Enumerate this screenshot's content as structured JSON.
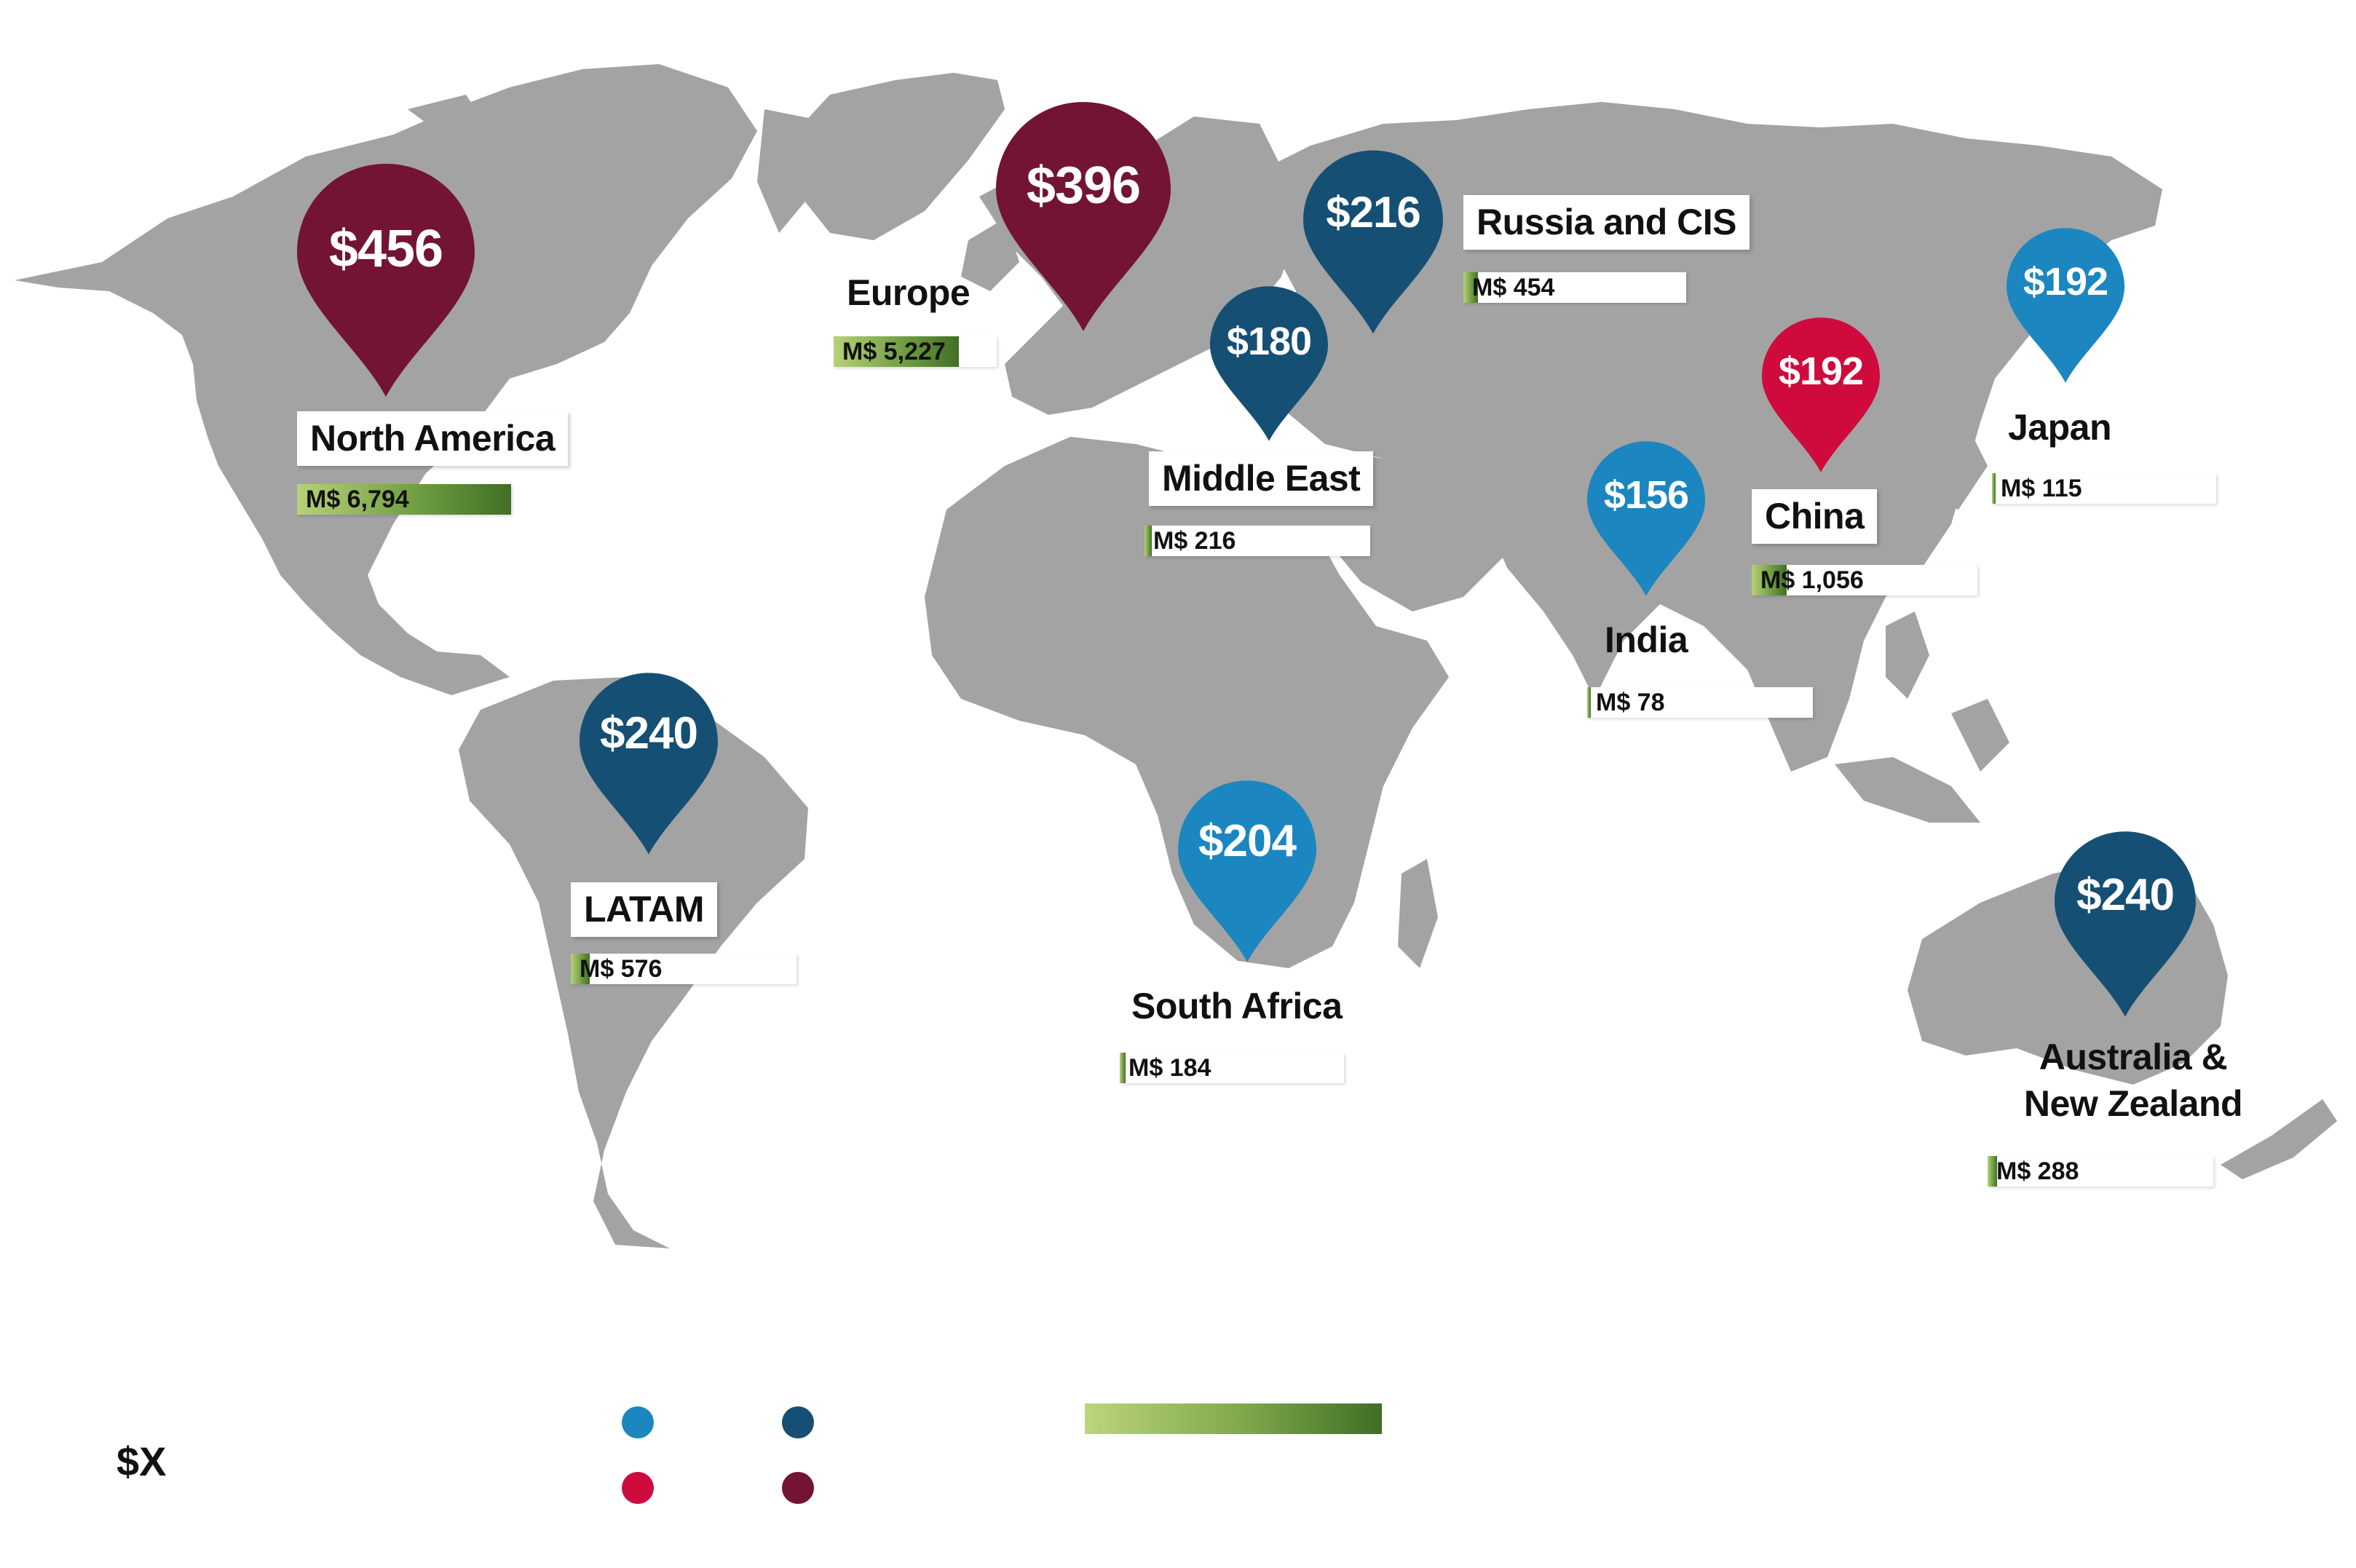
{
  "colors": {
    "land": "#a3a3a3",
    "light_blue": "#1b86bf",
    "dark_blue": "#154f74",
    "red": "#cf0b3e",
    "maroon": "#721432",
    "bar_light": "#b7d178",
    "bar_dark": "#416f25"
  },
  "regions": {
    "north_america": {
      "name": "North America",
      "price": "$456",
      "market": "M$ 6,794",
      "market_value": 6794,
      "pin_color": "maroon"
    },
    "europe": {
      "name": "Europe",
      "price": "$396",
      "market": "M$ 5,227",
      "market_value": 5227,
      "pin_color": "maroon"
    },
    "russia_cis": {
      "name": "Russia and CIS",
      "price": "$216",
      "market": "M$ 454",
      "market_value": 454,
      "pin_color": "dark_blue"
    },
    "middle_east": {
      "name": "Middle East",
      "price": "$180",
      "market": "M$ 216",
      "market_value": 216,
      "pin_color": "dark_blue"
    },
    "china": {
      "name": "China",
      "price": "$192",
      "market": "M$ 1,056",
      "market_value": 1056,
      "pin_color": "red"
    },
    "japan": {
      "name": "Japan",
      "price": "$192",
      "market": "M$ 115",
      "market_value": 115,
      "pin_color": "light_blue"
    },
    "india": {
      "name": "India",
      "price": "$156",
      "market": "M$ 78",
      "market_value": 78,
      "pin_color": "light_blue"
    },
    "latam": {
      "name": "LATAM",
      "price": "$240",
      "market": "M$ 576",
      "market_value": 576,
      "pin_color": "dark_blue"
    },
    "south_africa": {
      "name": "South Africa",
      "price": "$204",
      "market": "M$ 184",
      "market_value": 184,
      "pin_color": "light_blue"
    },
    "australia_nz": {
      "name": "Australia & New Zealand",
      "name_line1": "Australia &",
      "name_line2": "New Zealand",
      "price": "$240",
      "market": "M$ 288",
      "market_value": 288,
      "pin_color": "dark_blue"
    }
  },
  "legend": {
    "price_symbol": "$X",
    "dots": [
      "light_blue",
      "dark_blue",
      "red",
      "maroon"
    ],
    "scale_icon": "market-size-gradient-bar"
  }
}
